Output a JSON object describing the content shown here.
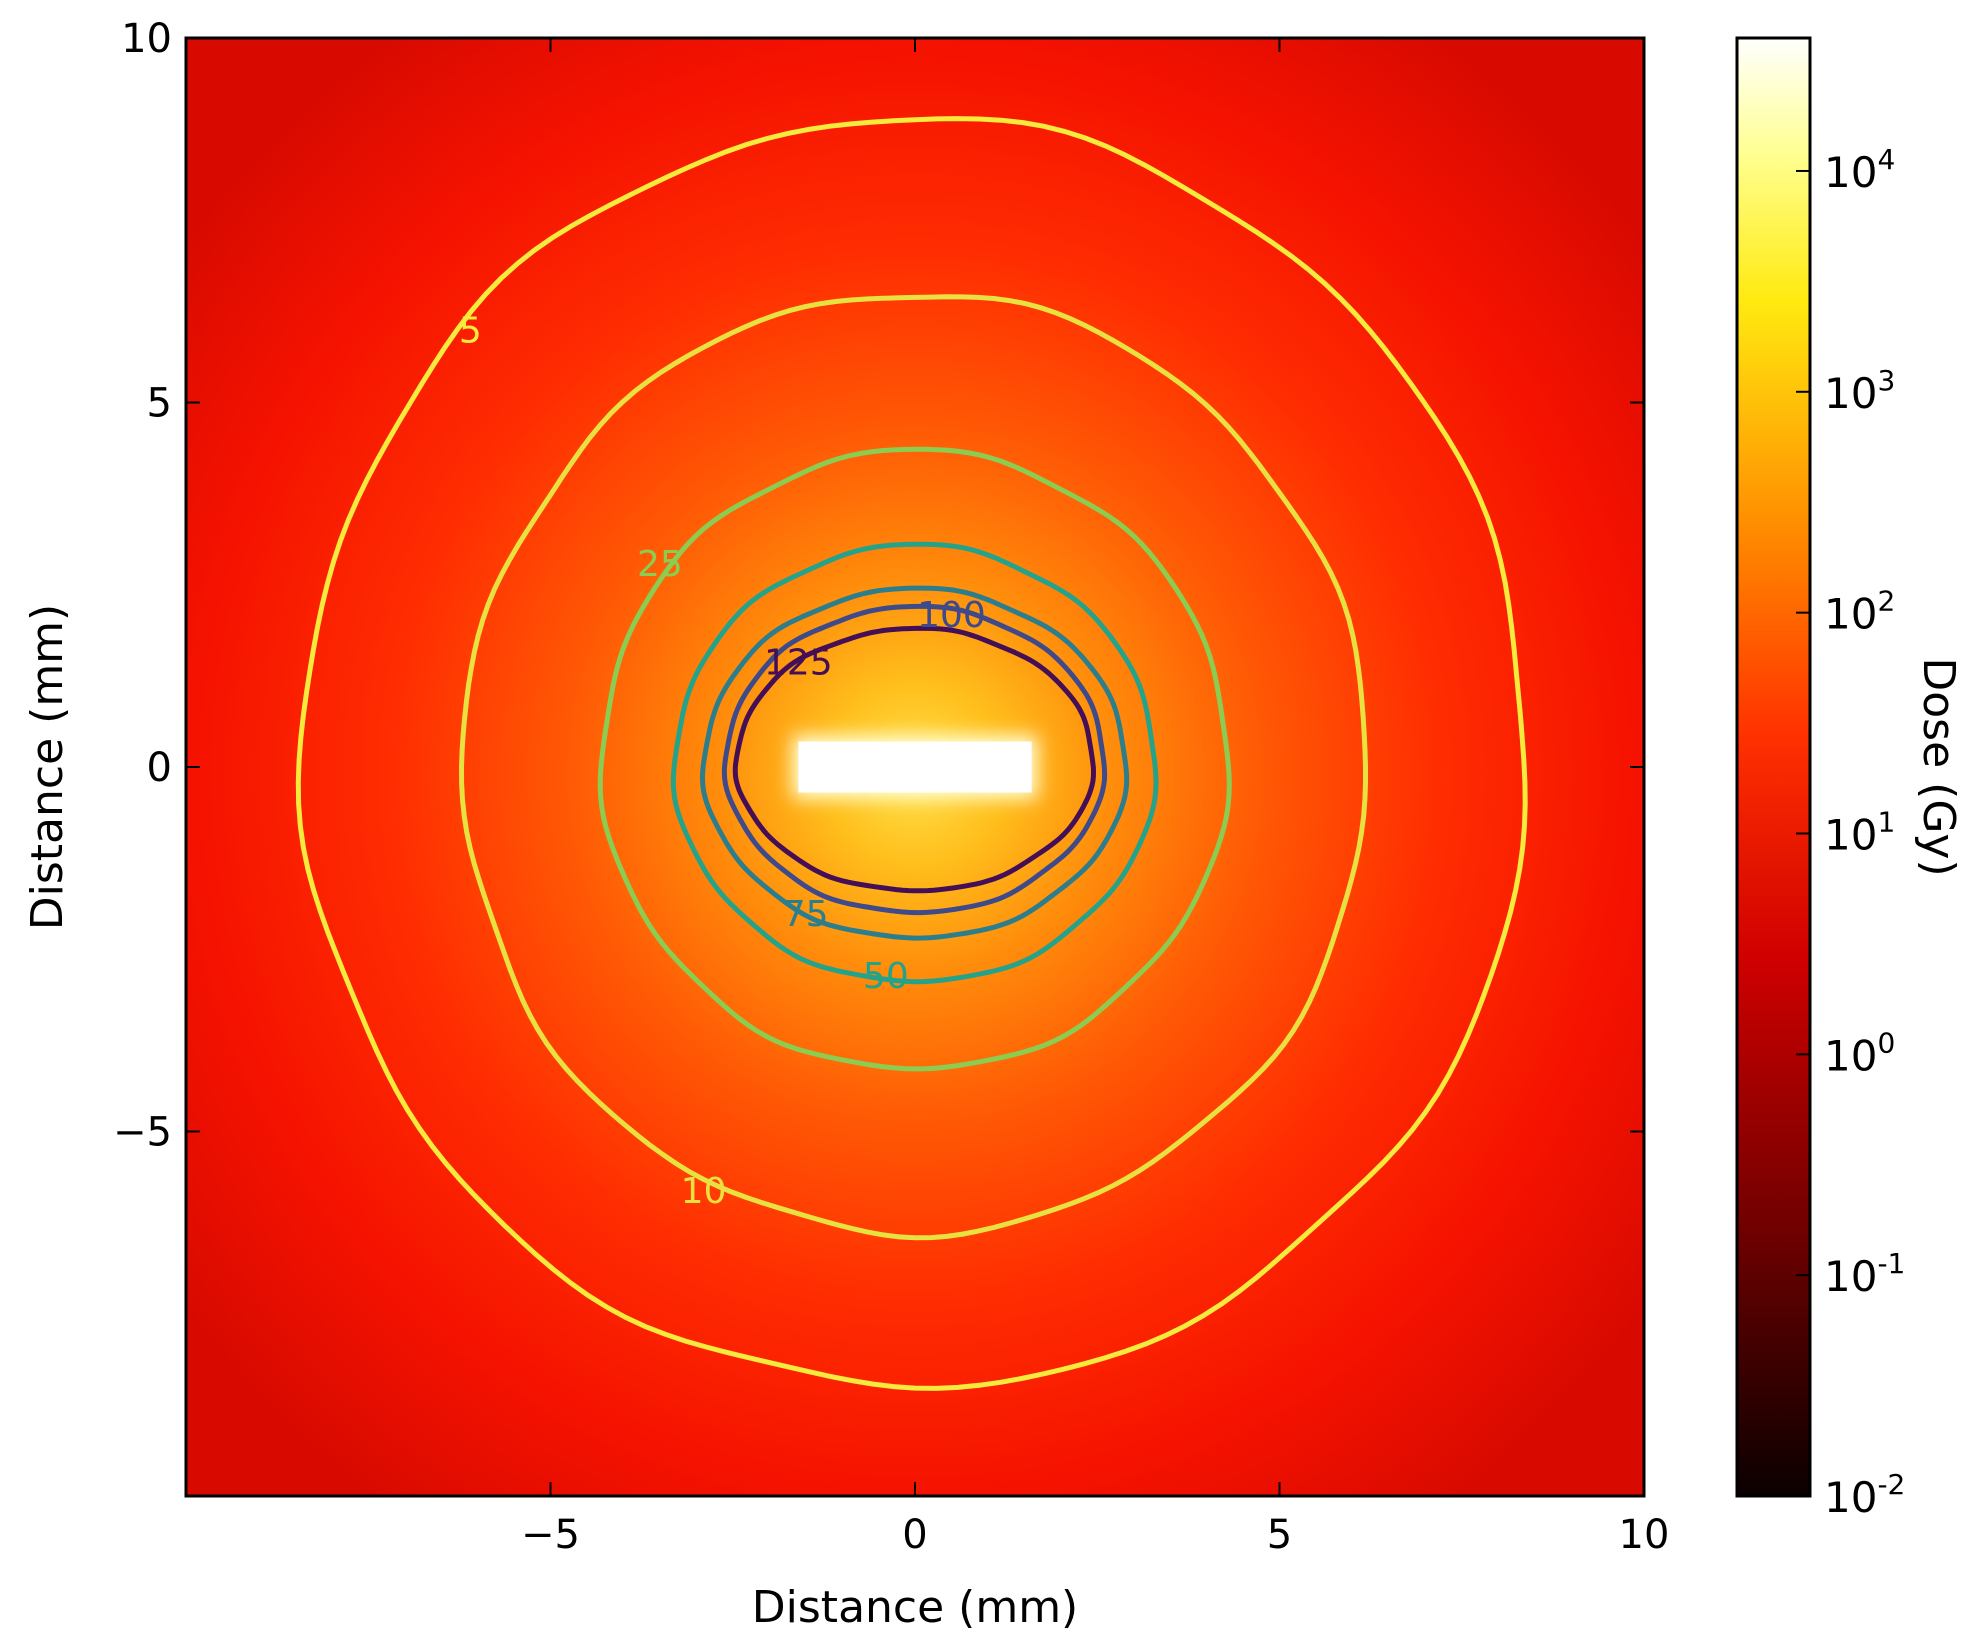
{
  "chart_data": {
    "type": "heatmap",
    "title": "",
    "xlabel": "Distance (mm)",
    "ylabel": "Distance (mm)",
    "xlim": [
      -10,
      10
    ],
    "ylim": [
      -10,
      10
    ],
    "x_ticks": [
      -5,
      0,
      5,
      10
    ],
    "y_ticks": [
      -5,
      0,
      5,
      10
    ],
    "x_tick_labels": [
      "−5",
      "0",
      "5",
      "10"
    ],
    "y_tick_labels": [
      "−5",
      "0",
      "5",
      "10"
    ],
    "grid": false,
    "colormap": "hot",
    "source": {
      "shape": "rectangle",
      "x": [
        -1.6,
        1.6
      ],
      "y": [
        -0.35,
        0.35
      ]
    },
    "colorbar": {
      "label": "Dose (Gy)",
      "scale": "log",
      "range": [
        0.01,
        40000
      ],
      "ticks": [
        {
          "value": 0.01,
          "base": "10",
          "exp": "-2"
        },
        {
          "value": 0.1,
          "base": "10",
          "exp": "-1"
        },
        {
          "value": 1,
          "base": "10",
          "exp": "0"
        },
        {
          "value": 10,
          "base": "10",
          "exp": "1"
        },
        {
          "value": 100,
          "base": "10",
          "exp": "2"
        },
        {
          "value": 1000,
          "base": "10",
          "exp": "3"
        },
        {
          "value": 10000,
          "base": "10",
          "exp": "4"
        }
      ]
    },
    "contours": [
      {
        "level": 5,
        "label": "5",
        "color": "#f6ea3c",
        "rx": 8.4,
        "ry_top": 8.8,
        "ry_bottom": 8.6,
        "cy": 0.1,
        "label_at": [
          -6.1,
          6.0
        ]
      },
      {
        "level": 10,
        "label": "10",
        "color": "#e9e140",
        "rx": 6.2,
        "ry_top": 6.5,
        "ry_bottom": 6.4,
        "cy": 0.0,
        "label_at": [
          -2.9,
          -5.8
        ]
      },
      {
        "level": 25,
        "label": "25",
        "color": "#8ccc50",
        "rx": 4.3,
        "ry_top": 4.3,
        "ry_bottom": 4.2,
        "cy": 0.05,
        "label_at": [
          -3.5,
          2.8
        ]
      },
      {
        "level": 50,
        "label": "50",
        "color": "#25a38a",
        "rx": 3.3,
        "ry_top": 3.05,
        "ry_bottom": 2.95,
        "cy": 0.0,
        "label_at": [
          -0.4,
          -2.85
        ]
      },
      {
        "level": 75,
        "label": "75",
        "color": "#2d7e8c",
        "rx": 2.9,
        "ry_top": 2.45,
        "ry_bottom": 2.35,
        "cy": 0.0,
        "label_at": [
          -1.5,
          -2.0
        ]
      },
      {
        "level": 100,
        "label": "100",
        "color": "#3e4a89",
        "rx": 2.6,
        "ry_top": 2.15,
        "ry_bottom": 2.05,
        "cy": 0.05,
        "label_at": [
          0.5,
          2.1
        ]
      },
      {
        "level": 125,
        "label": "125",
        "color": "#440f56",
        "rx": 2.45,
        "ry_top": 1.85,
        "ry_bottom": 1.75,
        "cy": 0.05,
        "label_at": [
          -1.6,
          1.45
        ]
      }
    ]
  }
}
